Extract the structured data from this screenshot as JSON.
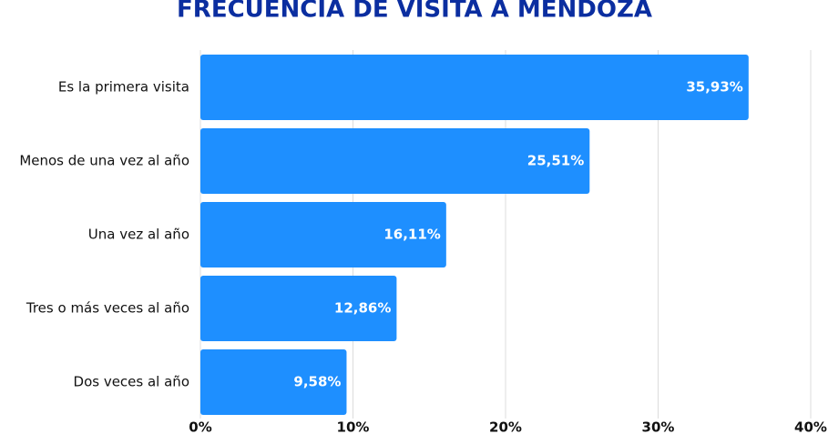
{
  "chart_data": {
    "type": "bar",
    "orientation": "horizontal",
    "title": "FRECUENCIA DE VISITA A MENDOZA",
    "categories": [
      "Es la primera visita",
      "Menos de una vez al año",
      "Una vez al año",
      "Tres o más veces al año",
      "Dos veces al año"
    ],
    "values": [
      35.93,
      25.51,
      16.11,
      12.86,
      9.58
    ],
    "value_labels": [
      "35,93%",
      "25,51%",
      "16,11%",
      "12,86%",
      "9,58%"
    ],
    "color": "#1e8fff",
    "xlim": [
      0,
      40
    ],
    "xticks": [
      {
        "value": 0,
        "label": "0%"
      },
      {
        "value": 10,
        "label": "10%"
      },
      {
        "value": 20,
        "label": "20%"
      },
      {
        "value": 30,
        "label": "30%"
      },
      {
        "value": 40,
        "label": "40%"
      }
    ],
    "grid": true
  }
}
